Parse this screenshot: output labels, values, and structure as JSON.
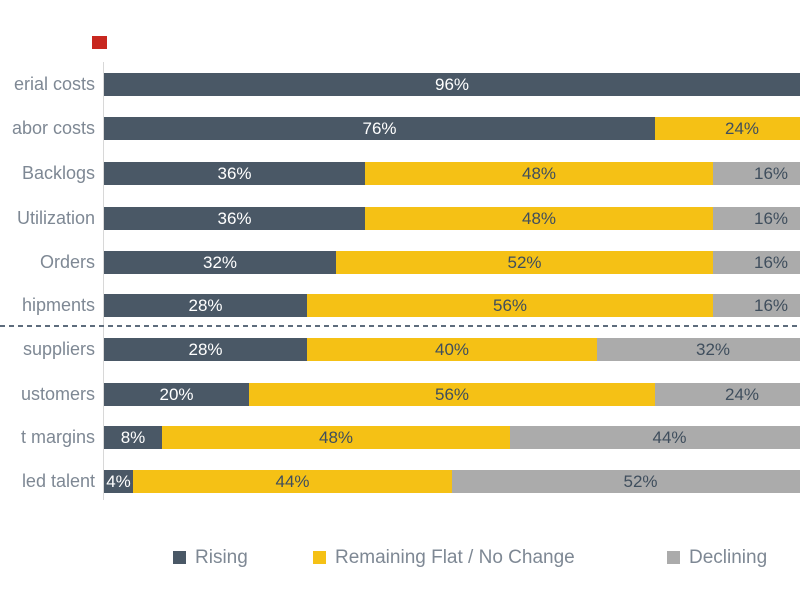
{
  "page": {
    "background": "#FFFFFF"
  },
  "marker": {
    "color": "#C8271F"
  },
  "colors": {
    "rising": "#4A5866",
    "flat": "#F5C115",
    "declining": "#ABABAB",
    "label_on_dark": "#FFFFFF",
    "label_on_light": "#3F4E5D",
    "category_text": "#7E8894",
    "legend_text": "#7E8894",
    "axis_line": "#D8D8D8",
    "divider": "#5D6C7C"
  },
  "chart_data": {
    "type": "bar",
    "orientation": "horizontal",
    "stacked": true,
    "title": "",
    "xlabel": "",
    "ylabel": "",
    "value_range": [
      0,
      100
    ],
    "unit": "%",
    "gridlines": false,
    "categories": [
      "erial costs",
      "abor costs",
      "Backlogs",
      "Utilization",
      "Orders",
      "hipments",
      "suppliers",
      "ustomers",
      "t margins",
      "led talent"
    ],
    "series": [
      {
        "name": "Rising",
        "color": "#4A5866",
        "values": [
          96,
          76,
          36,
          36,
          32,
          28,
          28,
          20,
          8,
          4
        ]
      },
      {
        "name": "Remaining Flat / No Change",
        "color": "#F5C115",
        "values": [
          4,
          24,
          48,
          48,
          52,
          56,
          40,
          56,
          48,
          44
        ]
      },
      {
        "name": "Declining",
        "color": "#ABABAB",
        "values": [
          0,
          0,
          16,
          16,
          16,
          16,
          32,
          24,
          44,
          52
        ]
      }
    ],
    "value_labels": [
      [
        "96%",
        "",
        ""
      ],
      [
        "76%",
        "24%",
        ""
      ],
      [
        "36%",
        "48%",
        "16%"
      ],
      [
        "36%",
        "48%",
        "16%"
      ],
      [
        "32%",
        "52%",
        "16%"
      ],
      [
        "28%",
        "56%",
        "16%"
      ],
      [
        "28%",
        "40%",
        "32%"
      ],
      [
        "20%",
        "56%",
        "24%"
      ],
      [
        "8%",
        "48%",
        "44%"
      ],
      [
        "4%",
        "44%",
        "52%"
      ]
    ],
    "divider_after_category_index": 5,
    "legend": {
      "position": "bottom",
      "entries": [
        "Rising",
        "Remaining Flat / No Change",
        "Declining"
      ]
    }
  }
}
